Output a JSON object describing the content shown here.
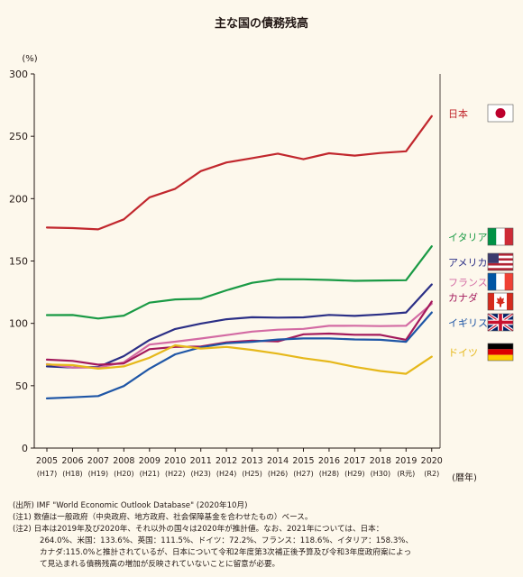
{
  "chart_data": {
    "type": "line",
    "title": "主な国の債務残高",
    "ylabel": "(%)",
    "xlabel": "(暦年)",
    "ylim": [
      0,
      300
    ],
    "yticks": [
      0,
      50,
      100,
      150,
      200,
      250,
      300
    ],
    "grid": false,
    "legend": "right",
    "categories": [
      "2005",
      "2006",
      "2007",
      "2008",
      "2009",
      "2010",
      "2011",
      "2012",
      "2013",
      "2014",
      "2015",
      "2016",
      "2017",
      "2018",
      "2019",
      "2020"
    ],
    "era_labels": [
      "(H17)",
      "(H18)",
      "(H19)",
      "(H20)",
      "(H21)",
      "(H22)",
      "(H23)",
      "(H24)",
      "(H25)",
      "(H26)",
      "(H27)",
      "(H28)",
      "(H29)",
      "(H30)",
      "(R元)",
      "(R2)"
    ],
    "series": [
      {
        "name": "日本",
        "color": "#c1272d",
        "flag": "japan-flag-icon",
        "values": [
          176.8,
          176.4,
          175.4,
          183.4,
          201.0,
          207.9,
          222.1,
          229.0,
          232.5,
          236.1,
          231.6,
          236.4,
          234.5,
          236.6,
          238.0,
          266.2
        ]
      },
      {
        "name": "イタリア",
        "color": "#1a9a45",
        "flag": "italy-flag-icon",
        "values": [
          106.6,
          106.7,
          103.9,
          106.2,
          116.6,
          119.2,
          119.7,
          126.5,
          132.5,
          135.4,
          135.3,
          134.8,
          134.1,
          134.4,
          134.6,
          161.8
        ]
      },
      {
        "name": "アメリカ",
        "color": "#2b2f86",
        "flag": "usa-flag-icon",
        "values": [
          65.5,
          64.6,
          65.0,
          73.7,
          86.7,
          95.5,
          99.8,
          103.3,
          104.9,
          104.6,
          104.8,
          106.8,
          106.0,
          107.1,
          108.7,
          131.2
        ]
      },
      {
        "name": "フランス",
        "color": "#d36aa3",
        "flag": "france-flag-icon",
        "values": [
          67.4,
          64.6,
          64.5,
          68.8,
          83.0,
          85.3,
          87.8,
          90.6,
          93.4,
          94.9,
          95.6,
          98.0,
          98.1,
          97.8,
          98.1,
          115.7
        ]
      },
      {
        "name": "カナダ",
        "color": "#a3195b",
        "flag": "canada-flag-icon",
        "values": [
          70.9,
          69.9,
          66.9,
          67.9,
          79.3,
          81.1,
          81.5,
          84.8,
          86.1,
          85.5,
          91.2,
          91.8,
          90.9,
          90.8,
          86.8,
          117.5
        ]
      },
      {
        "name": "イギリス",
        "color": "#1f56a6",
        "flag": "uk-flag-icon",
        "values": [
          39.8,
          40.7,
          41.7,
          49.7,
          63.7,
          75.2,
          80.8,
          84.1,
          85.2,
          87.0,
          87.9,
          87.9,
          87.1,
          86.8,
          85.2,
          108.7
        ]
      },
      {
        "name": "ドイツ",
        "color": "#e6b81b",
        "flag": "germany-flag-icon",
        "values": [
          67.0,
          66.5,
          63.7,
          65.5,
          72.4,
          82.4,
          79.8,
          81.1,
          78.7,
          75.7,
          72.1,
          69.3,
          65.1,
          61.8,
          59.6,
          73.3
        ]
      }
    ]
  },
  "notes": {
    "source": "(出所) IMF \"World Economic Outlook Database\" (2020年10月)",
    "note1": "(注1) 数値は一般政府（中央政府、地方政府、社会保障基金を合わせたもの）ベース。",
    "note2_l1": "(注2) 日本は2019年及び2020年、それ以外の国々は2020年が推計値。なお、2021年については、日本：",
    "note2_l2": "264.0%、米国：133.6%、英国：111.5%、ドイツ：72.2%、フランス：118.6%、イタリア：158.3%、",
    "note2_l3": "カナダ:115.0%と推計されているが、日本について令和2年度第3次補正後予算及び令和3年度政府案によっ",
    "note2_l4": "て見込まれる債務残高の増加が反映されていないことに留意が必要。"
  }
}
